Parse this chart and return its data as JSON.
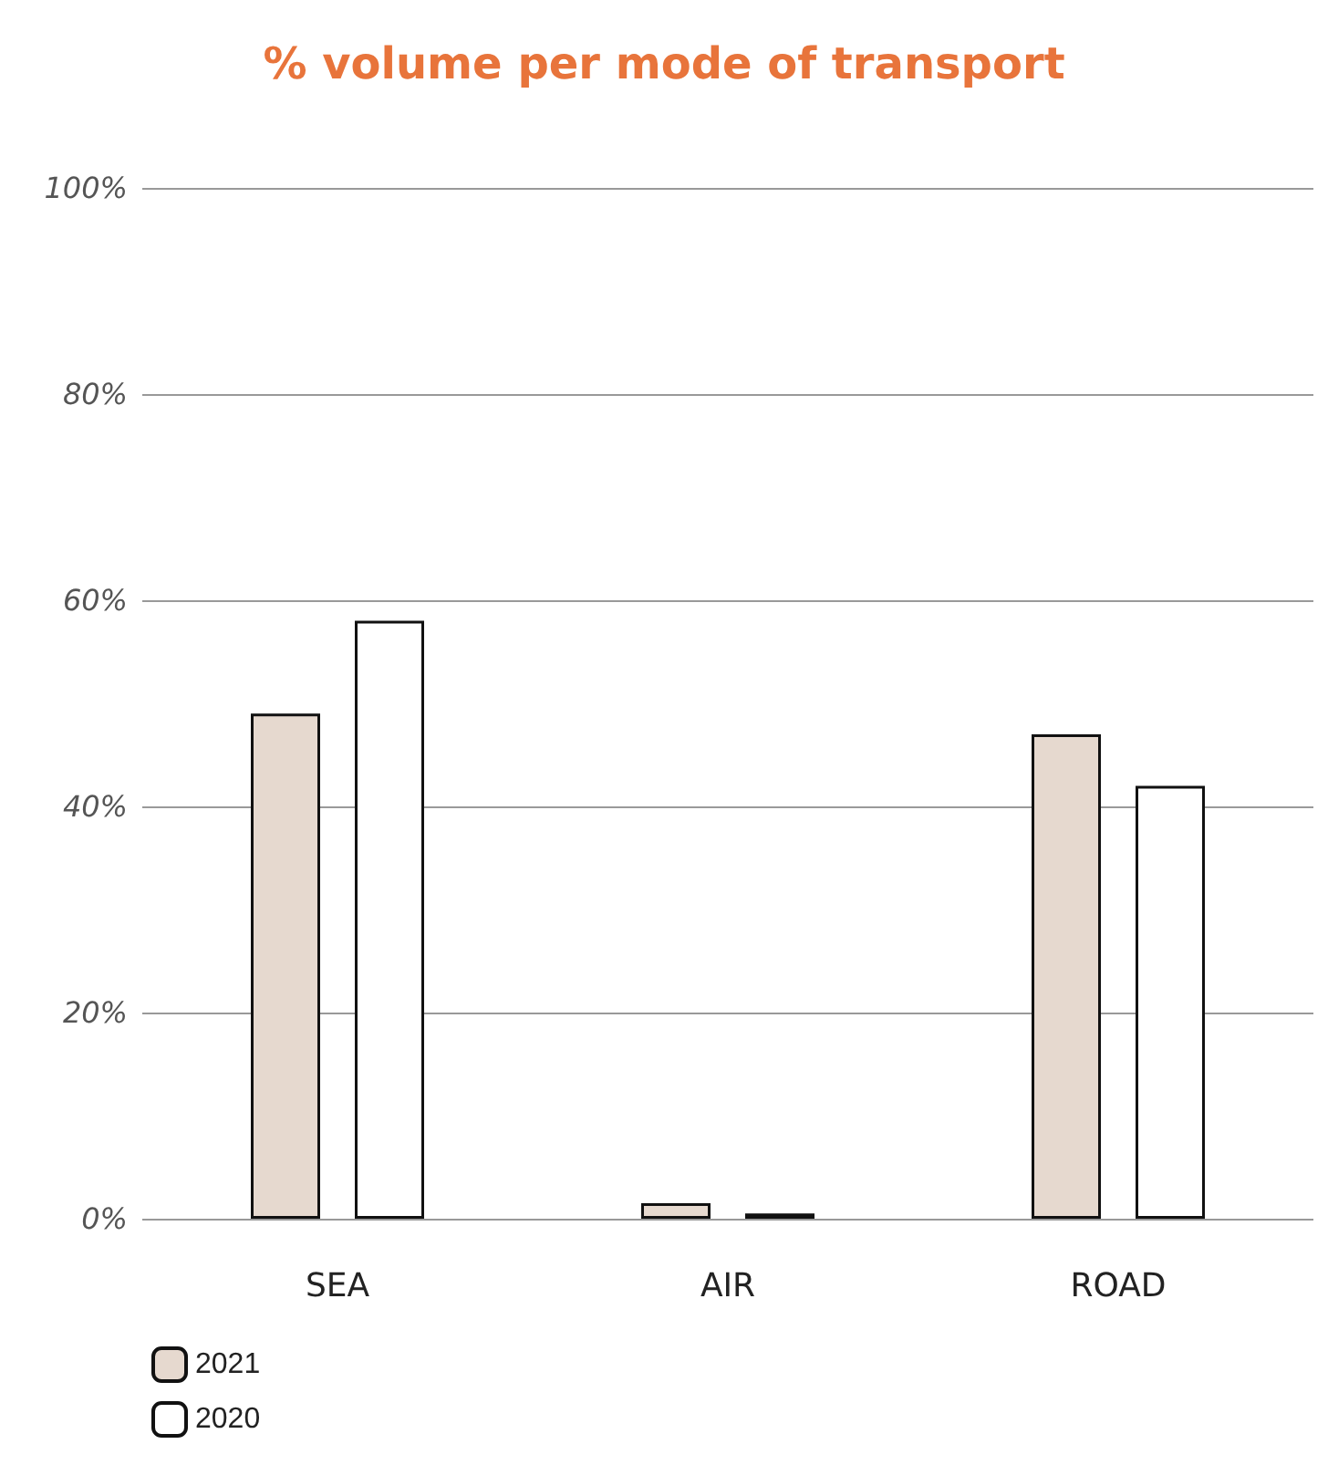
{
  "chart_data": {
    "type": "bar",
    "title": "% volume per mode of transport",
    "categories": [
      "SEA",
      "AIR",
      "ROAD"
    ],
    "series": [
      {
        "name": "2021",
        "color": "#e6d9cf",
        "values": [
          49,
          1.5,
          47
        ]
      },
      {
        "name": "2020",
        "color": "#ffffff",
        "values": [
          58,
          0.5,
          42
        ]
      }
    ],
    "ylim": [
      0,
      100
    ],
    "yticks": [
      {
        "value": 0,
        "label": "0%"
      },
      {
        "value": 20,
        "label": "20%"
      },
      {
        "value": 40,
        "label": "40%"
      },
      {
        "value": 60,
        "label": "60%"
      },
      {
        "value": 80,
        "label": "80%"
      },
      {
        "value": 100,
        "label": "100%"
      }
    ],
    "grid": "y",
    "legend": "bottom left"
  }
}
